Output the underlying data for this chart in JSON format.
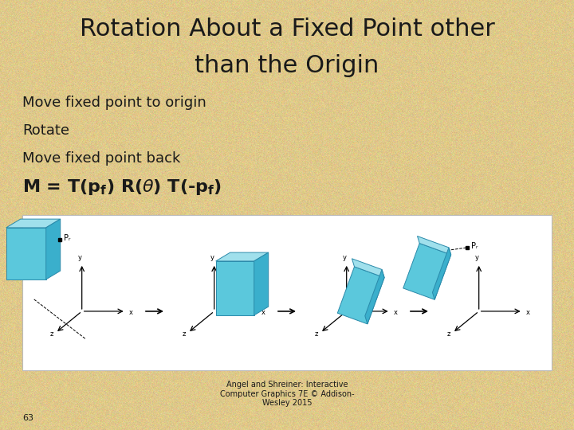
{
  "title_line1": "Rotation About a Fixed Point other",
  "title_line2": "than the Origin",
  "bullet1": "Move fixed point to origin",
  "bullet2": "Rotate",
  "bullet3": "Move fixed point back",
  "bg_color": "#dfc98a",
  "text_color": "#1a1a1a",
  "title_fontsize": 22,
  "bullet_fontsize": 13,
  "formula_fontsize": 14,
  "page_number": "63",
  "footer": "Angel and Shreiner: Interactive\nComputer Graphics 7E © Addison-\nWesley 2015",
  "image_bg": "#ffffff",
  "box_color_front": "#5bc8dc",
  "box_color_top": "#a0e0ec",
  "box_color_right": "#3aafcc",
  "box_edge_color": "#2a8aaa"
}
